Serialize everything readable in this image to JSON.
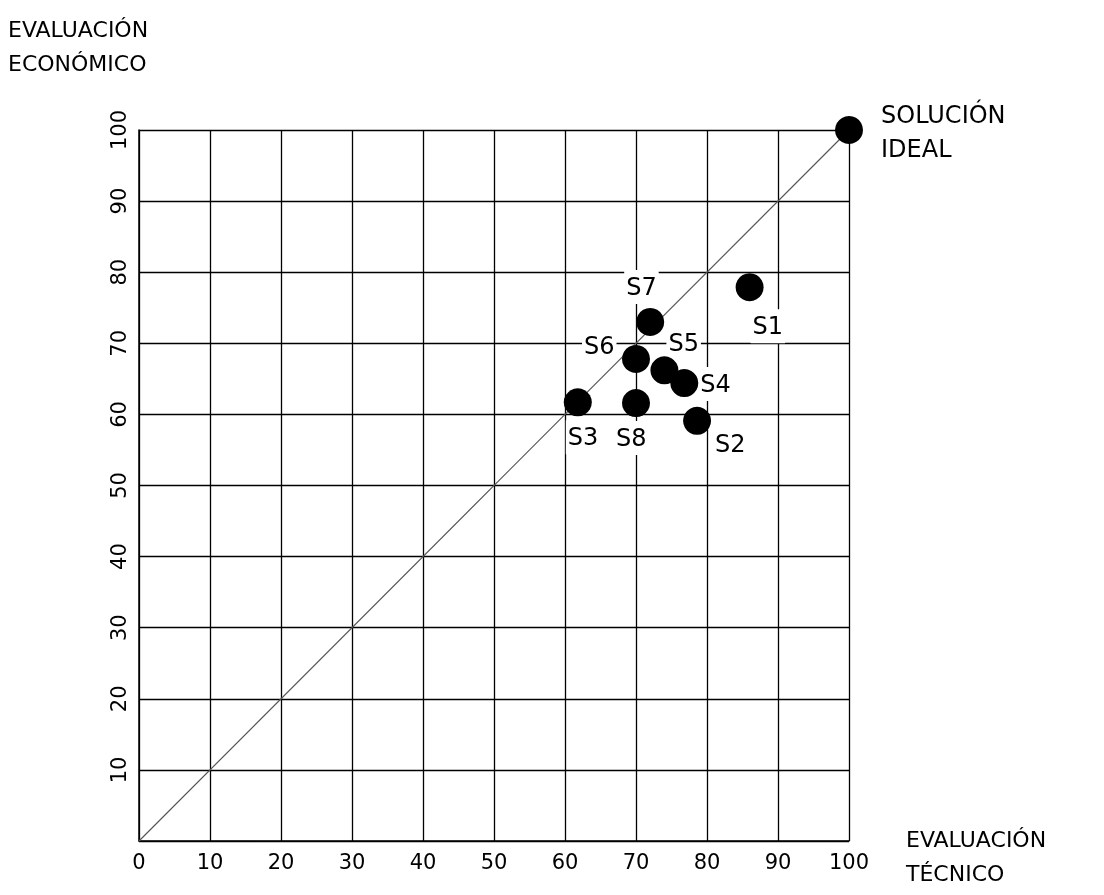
{
  "chart_data": {
    "type": "scatter",
    "xlabel": "EVALUACIÓN\nTÉCNICO",
    "ylabel": "EVALUACIÓN\nECONÓMICO",
    "series": [
      {
        "type": "line",
        "color": "#555555",
        "x": [
          0,
          100
        ],
        "values": [
          0,
          100
        ],
        "marker": "none"
      },
      {
        "color": "#000000",
        "x": [
          100,
          86,
          78.6,
          61.8,
          76.8,
          74,
          70,
          72,
          70
        ],
        "values": [
          100,
          77.9,
          59.1,
          61.7,
          64.4,
          66.2,
          67.8,
          73,
          61.6
        ],
        "marker": "circle"
      }
    ],
    "annotations": [
      {
        "text": "SOLUCIÓN\nIDEAL",
        "x": 100,
        "y": 100
      },
      {
        "text": "S1",
        "x": 86,
        "y": 77.9
      },
      {
        "text": "S2",
        "x": 78.6,
        "y": 59.1
      },
      {
        "text": "S3",
        "x": 61.8,
        "y": 61.7
      },
      {
        "text": "S4",
        "x": 76.8,
        "y": 64.4
      },
      {
        "text": "S5",
        "x": 74,
        "y": 66.2
      },
      {
        "text": "S6",
        "x": 70,
        "y": 67.8
      },
      {
        "text": "S7",
        "x": 72,
        "y": 73
      },
      {
        "text": "S8",
        "x": 70,
        "y": 61.6
      }
    ],
    "xlim": [
      0,
      100
    ],
    "xticks": [
      0,
      10,
      20,
      30,
      40,
      50,
      60,
      70,
      80,
      90,
      100
    ],
    "ylim": [
      0,
      100
    ],
    "yticks": [
      {
        "value": 0,
        "label": null
      },
      10,
      20,
      30,
      40,
      50,
      60,
      70,
      80,
      90,
      100
    ],
    "grid": true
  }
}
